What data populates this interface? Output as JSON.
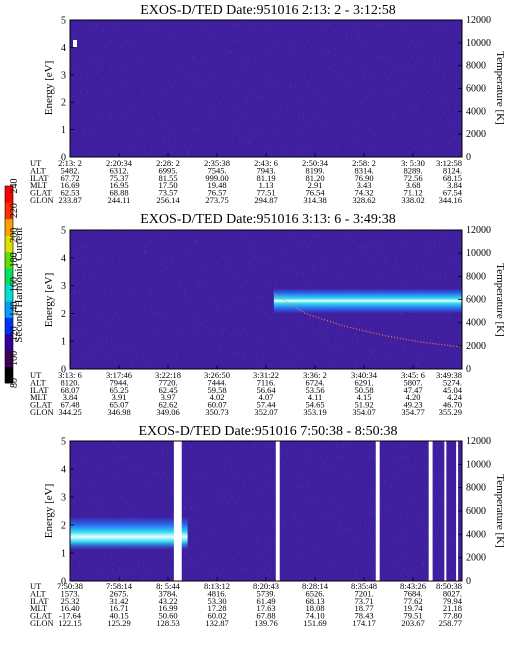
{
  "colors": {
    "background": "#ffffff",
    "plot_background": "#3d1fa0",
    "band_core": "#ffffff",
    "band_mid": "#30d8f0",
    "band_outer": "#2a6cf0",
    "trace": "#ff7a3a",
    "gap": "#ffffff"
  },
  "colorbar": {
    "label": "Second Harmonic Current",
    "ticks": [
      "80",
      "100",
      "120",
      "140",
      "160",
      "180",
      "200",
      "220",
      "240"
    ],
    "colors": [
      "#000000",
      "#400058",
      "#3000a0",
      "#0030ff",
      "#00a0ff",
      "#00e0d0",
      "#00e060",
      "#60e000",
      "#e0e000",
      "#ffa000",
      "#ff3000",
      "#ff0000"
    ]
  },
  "chart_data": [
    {
      "type": "heatmap",
      "title": "EXOS-D/TED   Date:951016  2:13: 2 - 3:12:58",
      "ylabel": "Energy [eV]",
      "ylabel_right": "Temperature [K]",
      "ylim": [
        0,
        5
      ],
      "ylim_right": [
        0,
        12000
      ],
      "yticks": [
        "0",
        "1",
        "2",
        "3",
        "4",
        "5"
      ],
      "yticks_right": [
        "0",
        "2000",
        "4000",
        "6000",
        "8000",
        "10000",
        "12000"
      ],
      "grid": false,
      "table_labels": [
        "UT",
        "ALT",
        "ILAT",
        "MLT",
        "GLAT",
        "GLON"
      ],
      "table": [
        [
          "2:13: 2",
          "2:20:34",
          "2:28: 2",
          "2:35:38",
          "2:43: 6",
          "2:50:34",
          "2:58: 2",
          "3: 5:30",
          "3:12:58"
        ],
        [
          "5482.",
          "6312.",
          "6995.",
          "7545.",
          "7943.",
          "8199.",
          "8314.",
          "8289.",
          "8124."
        ],
        [
          "67.72",
          "75.37",
          "81.55",
          "999.00",
          "81.19",
          "81.20",
          "76.90",
          "72.56",
          "68.15"
        ],
        [
          "16.69",
          "16.95",
          "17.50",
          "19.48",
          "1.13",
          "2.91",
          "3.43",
          "3.68",
          "3.84"
        ],
        [
          "62.53",
          "68.88",
          "73.57",
          "76.57",
          "77.51",
          "76.54",
          "74.32",
          "71.12",
          "67.54"
        ],
        [
          "233.87",
          "244.11",
          "256.14",
          "273.75",
          "294.87",
          "314.38",
          "328.62",
          "338.02",
          "344.16"
        ]
      ]
    },
    {
      "type": "heatmap",
      "title": "EXOS-D/TED   Date:951016  3:13: 6 - 3:49:38",
      "ylabel": "Energy [eV]",
      "ylabel_right": "Temperature [K]",
      "ylim": [
        0,
        5
      ],
      "ylim_right": [
        0,
        12000
      ],
      "yticks": [
        "0",
        "1",
        "2",
        "3",
        "4",
        "5"
      ],
      "yticks_right": [
        "0",
        "2000",
        "4000",
        "6000",
        "8000",
        "10000",
        "12000"
      ],
      "grid": false,
      "band": {
        "x_start": 0.52,
        "x_end": 1.0,
        "energy_center": 2.45,
        "energy_halfwidth": 0.45
      },
      "temperature_trace": [
        {
          "x": 0.52,
          "temperature_K": 6500
        },
        {
          "x": 0.6,
          "temperature_K": 4800
        },
        {
          "x": 0.7,
          "temperature_K": 3700
        },
        {
          "x": 0.8,
          "temperature_K": 2900
        },
        {
          "x": 0.9,
          "temperature_K": 2300
        },
        {
          "x": 1.0,
          "temperature_K": 1900
        }
      ],
      "table_labels": [
        "UT",
        "ALT",
        "ILAT",
        "MLT",
        "GLAT",
        "GLON"
      ],
      "table": [
        [
          "3:13: 6",
          "3:17:46",
          "3:22:18",
          "3:26:50",
          "3:31:22",
          "3:36: 2",
          "3:40:34",
          "3:45: 6",
          "3:49:38"
        ],
        [
          "8120.",
          "7944.",
          "7720.",
          "7444.",
          "7116.",
          "6724.",
          "6291.",
          "5807.",
          "5274."
        ],
        [
          "68.07",
          "65.25",
          "62.45",
          "59.58",
          "56.64",
          "53.56",
          "50.58",
          "47.47",
          "45.04"
        ],
        [
          "3.84",
          "3.91",
          "3.97",
          "4.02",
          "4.07",
          "4.11",
          "4.15",
          "4.20",
          "4.24"
        ],
        [
          "67.48",
          "65.07",
          "62.62",
          "60.07",
          "57.44",
          "54.65",
          "51.92",
          "49.23",
          "46.70"
        ],
        [
          "344.25",
          "346.98",
          "349.06",
          "350.73",
          "352.07",
          "353.19",
          "354.07",
          "354.77",
          "355.29"
        ]
      ]
    },
    {
      "type": "heatmap",
      "title": "EXOS-D/TED   Date:951016  7:50:38 - 8:50:38",
      "ylabel": "Energy [eV]",
      "ylabel_right": "Temperature [K]",
      "ylim": [
        0,
        5
      ],
      "ylim_right": [
        0,
        12000
      ],
      "yticks": [
        "0",
        "1",
        "2",
        "3",
        "4",
        "5"
      ],
      "yticks_right": [
        "0",
        "2000",
        "4000",
        "6000",
        "8000",
        "10000",
        "12000"
      ],
      "grid": false,
      "band": {
        "x_start": 0.0,
        "x_end": 0.3,
        "energy_center": 1.7,
        "energy_halfwidth": 0.6
      },
      "data_gaps": [
        [
          0.265,
          0.285
        ],
        [
          0.525,
          0.535
        ],
        [
          0.78,
          0.79
        ],
        [
          0.915,
          0.925
        ],
        [
          0.955,
          0.96
        ],
        [
          0.985,
          0.99
        ]
      ],
      "table_labels": [
        "UT",
        "ALT",
        "ILAT",
        "MLT",
        "GLAT",
        "GLON"
      ],
      "table": [
        [
          "7:50:38",
          "7:58:14",
          "8: 5:44",
          "8:13:12",
          "8:20:43",
          "8:28:14",
          "8:35:48",
          "8:43:26",
          "8:50:38"
        ],
        [
          "1573.",
          "2675.",
          "3784.",
          "4816.",
          "5739.",
          "6526.",
          "7201.",
          "7684.",
          "8027."
        ],
        [
          "25.32",
          "31.42",
          "43.22",
          "53.30",
          "61.49",
          "68.13",
          "73.71",
          "77.62",
          "79.94"
        ],
        [
          "16.40",
          "16.71",
          "16.99",
          "17.28",
          "17.63",
          "18.08",
          "18.77",
          "19.74",
          "21.18"
        ],
        [
          "-17.64",
          "40.15",
          "50.60",
          "60.02",
          "67.88",
          "74.10",
          "78.43",
          "79.51",
          "77.80"
        ],
        [
          "122.15",
          "125.29",
          "128.53",
          "132.87",
          "139.76",
          "151.69",
          "174.17",
          "203.67",
          "258.77"
        ]
      ]
    }
  ]
}
